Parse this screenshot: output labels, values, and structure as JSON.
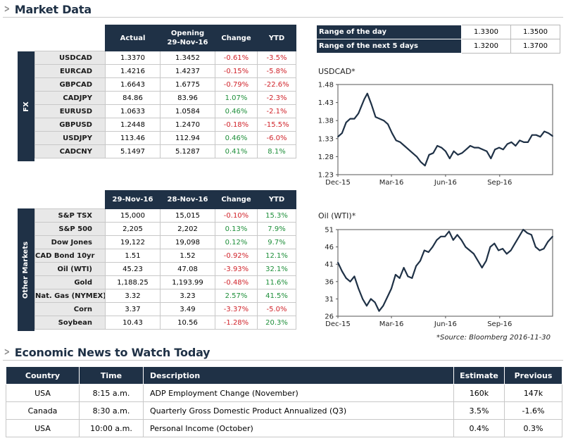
{
  "market_title": "Market Data",
  "news_title": "Economic News to Watch Today",
  "fx": {
    "side_label": "FX",
    "headers": [
      "Actual",
      "Opening\n29-Nov-16",
      "Change",
      "YTD"
    ],
    "rows": [
      {
        "name": "USDCAD",
        "actual": "1.3370",
        "opening": "1.3452",
        "change": "-0.61%",
        "ytd": "-3.5%",
        "change_dir": "neg",
        "ytd_dir": "neg"
      },
      {
        "name": "EURCAD",
        "actual": "1.4216",
        "opening": "1.4237",
        "change": "-0.15%",
        "ytd": "-5.8%",
        "change_dir": "neg",
        "ytd_dir": "neg"
      },
      {
        "name": "GBPCAD",
        "actual": "1.6643",
        "opening": "1.6775",
        "change": "-0.79%",
        "ytd": "-22.6%",
        "change_dir": "neg",
        "ytd_dir": "neg"
      },
      {
        "name": "CADJPY",
        "actual": "84.86",
        "opening": "83.96",
        "change": "1.07%",
        "ytd": "-2.3%",
        "change_dir": "pos",
        "ytd_dir": "neg"
      },
      {
        "name": "EURUSD",
        "actual": "1.0633",
        "opening": "1.0584",
        "change": "0.46%",
        "ytd": "-2.1%",
        "change_dir": "pos",
        "ytd_dir": "neg"
      },
      {
        "name": "GBPUSD",
        "actual": "1.2448",
        "opening": "1.2470",
        "change": "-0.18%",
        "ytd": "-15.5%",
        "change_dir": "neg",
        "ytd_dir": "neg"
      },
      {
        "name": "USDJPY",
        "actual": "113.46",
        "opening": "112.94",
        "change": "0.46%",
        "ytd": "-6.0%",
        "change_dir": "pos",
        "ytd_dir": "neg"
      },
      {
        "name": "CADCNY",
        "actual": "5.1497",
        "opening": "5.1287",
        "change": "0.41%",
        "ytd": "8.1%",
        "change_dir": "pos",
        "ytd_dir": "pos"
      }
    ]
  },
  "other": {
    "side_label": "Other Markets",
    "headers": [
      "29-Nov-16",
      "28-Nov-16",
      "Change",
      "YTD"
    ],
    "rows": [
      {
        "name": "S&P TSX",
        "actual": "15,000",
        "opening": "15,015",
        "change": "-0.10%",
        "ytd": "15.3%",
        "change_dir": "neg",
        "ytd_dir": "pos"
      },
      {
        "name": "S&P 500",
        "actual": "2,205",
        "opening": "2,202",
        "change": "0.13%",
        "ytd": "7.9%",
        "change_dir": "pos",
        "ytd_dir": "pos"
      },
      {
        "name": "Dow Jones",
        "actual": "19,122",
        "opening": "19,098",
        "change": "0.12%",
        "ytd": "9.7%",
        "change_dir": "pos",
        "ytd_dir": "pos"
      },
      {
        "name": "CAD Bond 10yr",
        "actual": "1.51",
        "opening": "1.52",
        "change": "-0.92%",
        "ytd": "12.1%",
        "change_dir": "neg",
        "ytd_dir": "pos"
      },
      {
        "name": "Oil (WTI)",
        "actual": "45.23",
        "opening": "47.08",
        "change": "-3.93%",
        "ytd": "32.1%",
        "change_dir": "neg",
        "ytd_dir": "pos"
      },
      {
        "name": "Gold",
        "actual": "1,188.25",
        "opening": "1,193.99",
        "change": "-0.48%",
        "ytd": "11.6%",
        "change_dir": "neg",
        "ytd_dir": "pos"
      },
      {
        "name": "Nat. Gas (NYMEX)",
        "actual": "3.32",
        "opening": "3.23",
        "change": "2.57%",
        "ytd": "41.5%",
        "change_dir": "pos",
        "ytd_dir": "pos"
      },
      {
        "name": "Corn",
        "actual": "3.37",
        "opening": "3.49",
        "change": "-3.37%",
        "ytd": "-5.0%",
        "change_dir": "neg",
        "ytd_dir": "neg"
      },
      {
        "name": "Soybean",
        "actual": "10.43",
        "opening": "10.56",
        "change": "-1.28%",
        "ytd": "20.3%",
        "change_dir": "neg",
        "ytd_dir": "pos"
      }
    ]
  },
  "range": {
    "rows": [
      {
        "label": "Range of the day",
        "low": "1.3300",
        "high": "1.3500"
      },
      {
        "label": "Range of the next 5 days",
        "low": "1.3200",
        "high": "1.3700"
      }
    ]
  },
  "source_note": "*Source: Bloomberg  2016-11-30",
  "news": {
    "headers": [
      "Country",
      "Time",
      "Description",
      "Estimate",
      "Previous"
    ],
    "rows": [
      {
        "country": "USA",
        "time": "8:15 a.m.",
        "description": "ADP Employment Change (November)",
        "estimate": "160k",
        "previous": "147k"
      },
      {
        "country": "Canada",
        "time": "8:30 a.m.",
        "description": "Quarterly Gross Domestic Product Annualized (Q3)",
        "estimate": "3.5%",
        "previous": "-1.6%"
      },
      {
        "country": "USA",
        "time": "10:00 a.m.",
        "description": "Personal Income (October)",
        "estimate": "0.4%",
        "previous": "0.3%"
      }
    ]
  },
  "colors": {
    "navy": "#1f3146",
    "positive": "#1e8f3a",
    "negative": "#d0232a",
    "line": "#1f3146"
  },
  "chart_data": [
    {
      "type": "line",
      "title": "USDCAD*",
      "xlabel": "",
      "ylabel": "",
      "x_tick_labels": [
        "Dec-15",
        "Mar-16",
        "Jun-16",
        "Sep-16"
      ],
      "y_tick_labels": [
        "1.48",
        "1.43",
        "1.38",
        "1.33",
        "1.28",
        "1.23"
      ],
      "ylim": [
        1.23,
        1.48
      ],
      "xlim": [
        "2015-12-01",
        "2016-11-30"
      ],
      "series": [
        {
          "x": [
            "2015-12-01",
            "2015-12-08",
            "2015-12-15",
            "2015-12-22",
            "2015-12-29",
            "2016-01-05",
            "2016-01-10",
            "2016-01-15",
            "2016-01-20",
            "2016-01-27",
            "2016-02-03",
            "2016-02-10",
            "2016-02-17",
            "2016-02-24",
            "2016-03-02",
            "2016-03-09",
            "2016-03-16",
            "2016-03-23",
            "2016-03-30",
            "2016-04-06",
            "2016-04-13",
            "2016-04-20",
            "2016-04-27",
            "2016-05-04",
            "2016-05-11",
            "2016-05-18",
            "2016-05-25",
            "2016-06-01",
            "2016-06-08",
            "2016-06-15",
            "2016-06-22",
            "2016-06-29",
            "2016-07-06",
            "2016-07-13",
            "2016-07-20",
            "2016-07-27",
            "2016-08-03",
            "2016-08-10",
            "2016-08-17",
            "2016-08-24",
            "2016-08-31",
            "2016-09-07",
            "2016-09-14",
            "2016-09-21",
            "2016-09-28",
            "2016-10-05",
            "2016-10-12",
            "2016-10-19",
            "2016-10-26",
            "2016-11-02",
            "2016-11-09",
            "2016-11-16",
            "2016-11-23",
            "2016-11-30"
          ],
          "values": [
            1.335,
            1.345,
            1.375,
            1.385,
            1.385,
            1.4,
            1.42,
            1.44,
            1.455,
            1.425,
            1.39,
            1.385,
            1.38,
            1.37,
            1.345,
            1.325,
            1.32,
            1.31,
            1.3,
            1.29,
            1.28,
            1.265,
            1.255,
            1.285,
            1.29,
            1.31,
            1.305,
            1.295,
            1.275,
            1.295,
            1.285,
            1.29,
            1.3,
            1.31,
            1.305,
            1.305,
            1.3,
            1.295,
            1.275,
            1.3,
            1.305,
            1.3,
            1.315,
            1.32,
            1.31,
            1.325,
            1.32,
            1.32,
            1.34,
            1.34,
            1.335,
            1.35,
            1.345,
            1.337
          ]
        }
      ]
    },
    {
      "type": "line",
      "title": "Oil (WTI)*",
      "xlabel": "",
      "ylabel": "",
      "x_tick_labels": [
        "Dec-15",
        "Mar-16",
        "Jun-16",
        "Sep-16"
      ],
      "y_tick_labels": [
        "51",
        "46",
        "41",
        "36",
        "31",
        "26"
      ],
      "ylim": [
        26,
        51
      ],
      "xlim": [
        "2015-12-01",
        "2016-11-30"
      ],
      "series": [
        {
          "x": [
            "2015-12-01",
            "2015-12-08",
            "2015-12-15",
            "2015-12-22",
            "2015-12-29",
            "2016-01-05",
            "2016-01-12",
            "2016-01-19",
            "2016-01-26",
            "2016-02-02",
            "2016-02-09",
            "2016-02-16",
            "2016-02-23",
            "2016-03-01",
            "2016-03-08",
            "2016-03-15",
            "2016-03-22",
            "2016-03-29",
            "2016-04-05",
            "2016-04-12",
            "2016-04-19",
            "2016-04-26",
            "2016-05-03",
            "2016-05-10",
            "2016-05-17",
            "2016-05-24",
            "2016-05-31",
            "2016-06-07",
            "2016-06-14",
            "2016-06-21",
            "2016-06-28",
            "2016-07-05",
            "2016-07-12",
            "2016-07-19",
            "2016-07-26",
            "2016-08-02",
            "2016-08-09",
            "2016-08-16",
            "2016-08-23",
            "2016-08-30",
            "2016-09-06",
            "2016-09-13",
            "2016-09-20",
            "2016-09-27",
            "2016-10-04",
            "2016-10-11",
            "2016-10-18",
            "2016-10-25",
            "2016-11-01",
            "2016-11-08",
            "2016-11-15",
            "2016-11-22",
            "2016-11-30"
          ],
          "values": [
            41.5,
            39,
            37,
            36,
            37.5,
            34,
            31,
            29,
            31,
            30,
            27.5,
            29,
            31.5,
            34,
            38,
            37,
            40,
            37.5,
            37,
            40.5,
            42,
            45,
            44.5,
            46,
            48,
            49,
            49,
            50.5,
            48,
            49.5,
            48,
            46,
            45,
            44,
            42,
            40,
            42,
            46,
            47,
            45,
            45.5,
            44,
            45,
            47,
            49,
            51,
            50,
            49.5,
            46,
            45,
            45.5,
            47.5,
            49
          ]
        }
      ]
    }
  ]
}
